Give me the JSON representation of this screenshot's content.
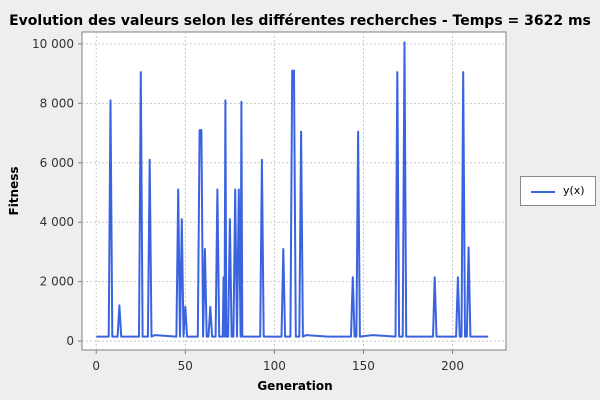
{
  "chart_data": {
    "type": "line",
    "title": "Evolution des valeurs selon les différentes recherches - Temps = 3622 ms",
    "xlabel": "Generation",
    "ylabel": "Fitness",
    "xlim": [
      -8,
      230
    ],
    "ylim": [
      -300,
      10400
    ],
    "x_ticks": [
      0,
      50,
      100,
      150,
      200
    ],
    "y_ticks": [
      0,
      2000,
      4000,
      6000,
      8000,
      10000
    ],
    "x_tick_labels": [
      "0",
      "50",
      "100",
      "150",
      "200"
    ],
    "y_tick_labels": [
      "0",
      "2 000",
      "4 000",
      "6 000",
      "8 000",
      "10 000"
    ],
    "grid": true,
    "legend_position": "right",
    "colors": {
      "series": "#3a63e0",
      "plot_bg": "#ffffff",
      "grid": "#c8c8c8"
    },
    "series": [
      {
        "name": "y(x)",
        "points": [
          [
            0,
            150
          ],
          [
            7,
            150
          ],
          [
            8,
            8100
          ],
          [
            9,
            150
          ],
          [
            12,
            150
          ],
          [
            13,
            1200
          ],
          [
            14,
            150
          ],
          [
            24,
            150
          ],
          [
            25,
            9050
          ],
          [
            26,
            150
          ],
          [
            29,
            150
          ],
          [
            30,
            6100
          ],
          [
            31,
            150
          ],
          [
            33,
            200
          ],
          [
            45,
            150
          ],
          [
            46,
            5100
          ],
          [
            47,
            150
          ],
          [
            48,
            4100
          ],
          [
            49,
            150
          ],
          [
            50,
            1150
          ],
          [
            51,
            150
          ],
          [
            57,
            150
          ],
          [
            58,
            7100
          ],
          [
            59,
            7100
          ],
          [
            60,
            150
          ],
          [
            61,
            3100
          ],
          [
            62,
            150
          ],
          [
            63,
            150
          ],
          [
            64,
            1150
          ],
          [
            65,
            150
          ],
          [
            67,
            150
          ],
          [
            68,
            5100
          ],
          [
            69,
            150
          ],
          [
            71,
            150
          ],
          [
            71.5,
            2150
          ],
          [
            72,
            150
          ],
          [
            72.5,
            8100
          ],
          [
            73,
            150
          ],
          [
            74,
            150
          ],
          [
            75,
            4100
          ],
          [
            76,
            150
          ],
          [
            77,
            150
          ],
          [
            78,
            5100
          ],
          [
            79,
            150
          ],
          [
            80,
            5100
          ],
          [
            81,
            150
          ],
          [
            81.5,
            8050
          ],
          [
            82,
            150
          ],
          [
            92,
            150
          ],
          [
            93,
            6100
          ],
          [
            94,
            150
          ],
          [
            104,
            150
          ],
          [
            105,
            3100
          ],
          [
            106,
            150
          ],
          [
            109,
            150
          ],
          [
            110,
            9100
          ],
          [
            111,
            9100
          ],
          [
            112,
            150
          ],
          [
            114,
            150
          ],
          [
            115,
            7050
          ],
          [
            116,
            150
          ],
          [
            118,
            200
          ],
          [
            130,
            150
          ],
          [
            143,
            150
          ],
          [
            144,
            2150
          ],
          [
            145,
            150
          ],
          [
            146,
            150
          ],
          [
            147,
            7050
          ],
          [
            148,
            150
          ],
          [
            155,
            200
          ],
          [
            168,
            150
          ],
          [
            169,
            9050
          ],
          [
            170,
            150
          ],
          [
            172,
            150
          ],
          [
            173,
            10050
          ],
          [
            174,
            150
          ],
          [
            189,
            150
          ],
          [
            190,
            2150
          ],
          [
            191,
            150
          ],
          [
            202,
            150
          ],
          [
            203,
            2150
          ],
          [
            204,
            150
          ],
          [
            205,
            150
          ],
          [
            206,
            9050
          ],
          [
            207,
            150
          ],
          [
            208,
            150
          ],
          [
            209,
            3150
          ],
          [
            210,
            150
          ],
          [
            215,
            150
          ],
          [
            220,
            150
          ]
        ]
      }
    ]
  }
}
